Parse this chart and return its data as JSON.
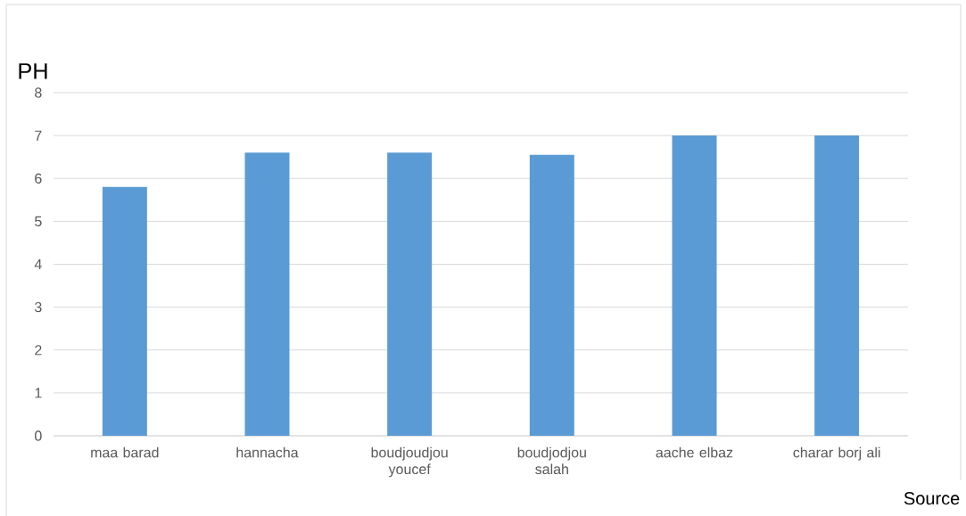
{
  "chart_data": {
    "type": "bar",
    "ylabel": "PH",
    "categories": [
      "maa barad",
      "hannacha",
      "boudjoudjou youcef",
      "boudjodjou salah",
      "aache elbaz",
      "charar borj ali"
    ],
    "values": [
      5.8,
      6.6,
      6.6,
      6.55,
      7.0,
      7.0
    ],
    "color": "#5b9bd5",
    "ylim": [
      0,
      8
    ],
    "yticks": [
      0,
      1,
      2,
      3,
      4,
      5,
      6,
      7,
      8
    ],
    "grid": "y",
    "annotations": [
      "Source"
    ]
  }
}
